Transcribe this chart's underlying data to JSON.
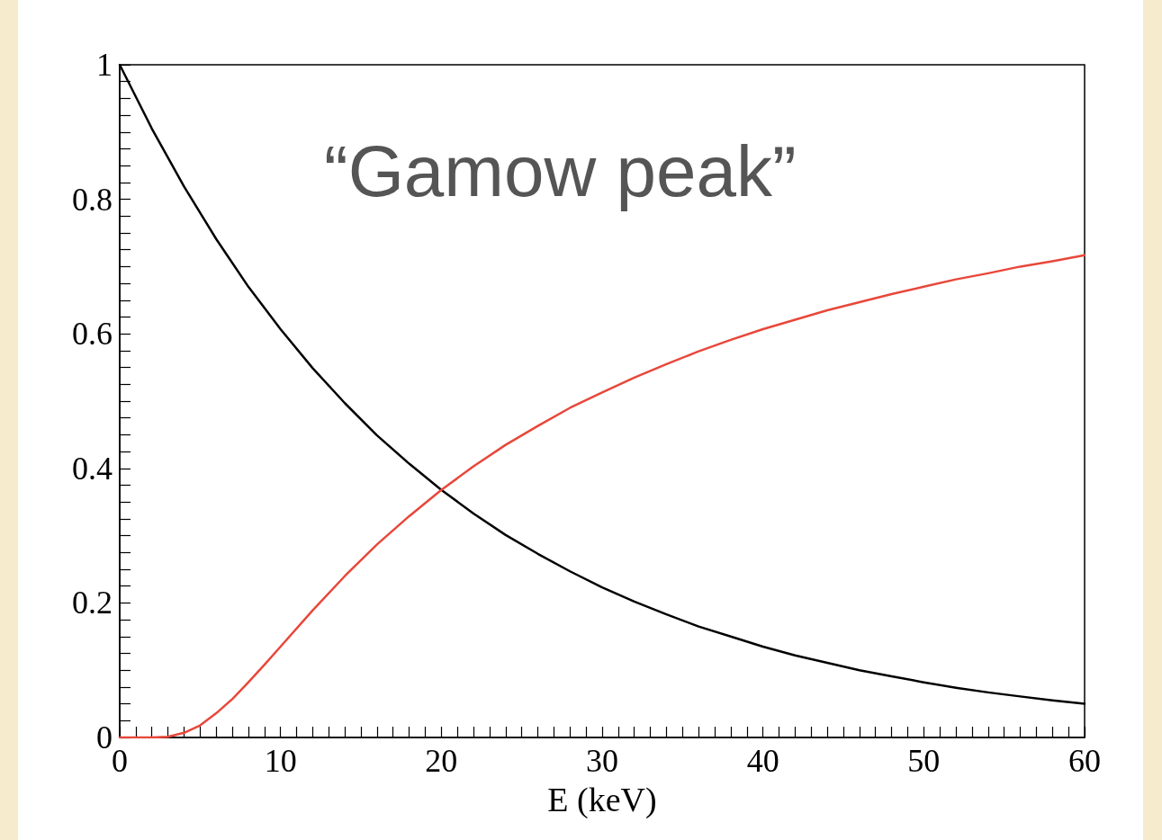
{
  "chart_data": {
    "type": "line",
    "xlabel": "E (keV)",
    "annotations": [
      "“Gamow peak”"
    ],
    "xlim": [
      0,
      60
    ],
    "xticks": [
      0,
      10,
      20,
      30,
      40,
      50,
      60
    ],
    "ylim": [
      0,
      1
    ],
    "yticks": [
      0,
      0.2,
      0.4,
      0.6,
      0.8,
      1
    ],
    "grid": false,
    "marker": "none",
    "line_style": "solid",
    "series": [
      {
        "color": "#000000",
        "x": [
          0,
          2,
          4,
          6,
          8,
          10,
          12,
          14,
          16,
          18,
          20,
          22,
          24,
          26,
          28,
          30,
          32,
          34,
          36,
          38,
          40,
          42,
          44,
          46,
          48,
          50,
          52,
          54,
          56,
          58,
          60
        ],
        "values": [
          1,
          0.905,
          0.819,
          0.741,
          0.67,
          0.607,
          0.549,
          0.497,
          0.449,
          0.407,
          0.368,
          0.333,
          0.301,
          0.273,
          0.247,
          0.223,
          0.202,
          0.183,
          0.165,
          0.15,
          0.135,
          0.122,
          0.111,
          0.1,
          0.091,
          0.082,
          0.074,
          0.067,
          0.061,
          0.055,
          0.05
        ]
      },
      {
        "color": "#e8473a",
        "x": [
          0,
          1,
          2,
          3,
          4,
          5,
          6,
          7,
          8,
          9,
          10,
          12,
          14,
          16,
          18,
          20,
          22,
          24,
          26,
          28,
          30,
          32,
          34,
          36,
          38,
          40,
          42,
          44,
          46,
          48,
          50,
          52,
          54,
          56,
          58,
          60
        ],
        "values": [
          0,
          0,
          0,
          0.001,
          0.007,
          0.018,
          0.036,
          0.057,
          0.082,
          0.108,
          0.135,
          0.189,
          0.24,
          0.287,
          0.329,
          0.368,
          0.403,
          0.435,
          0.463,
          0.49,
          0.513,
          0.535,
          0.555,
          0.574,
          0.591,
          0.607,
          0.621,
          0.635,
          0.647,
          0.659,
          0.67,
          0.681,
          0.69,
          0.7,
          0.708,
          0.717
        ]
      }
    ]
  }
}
